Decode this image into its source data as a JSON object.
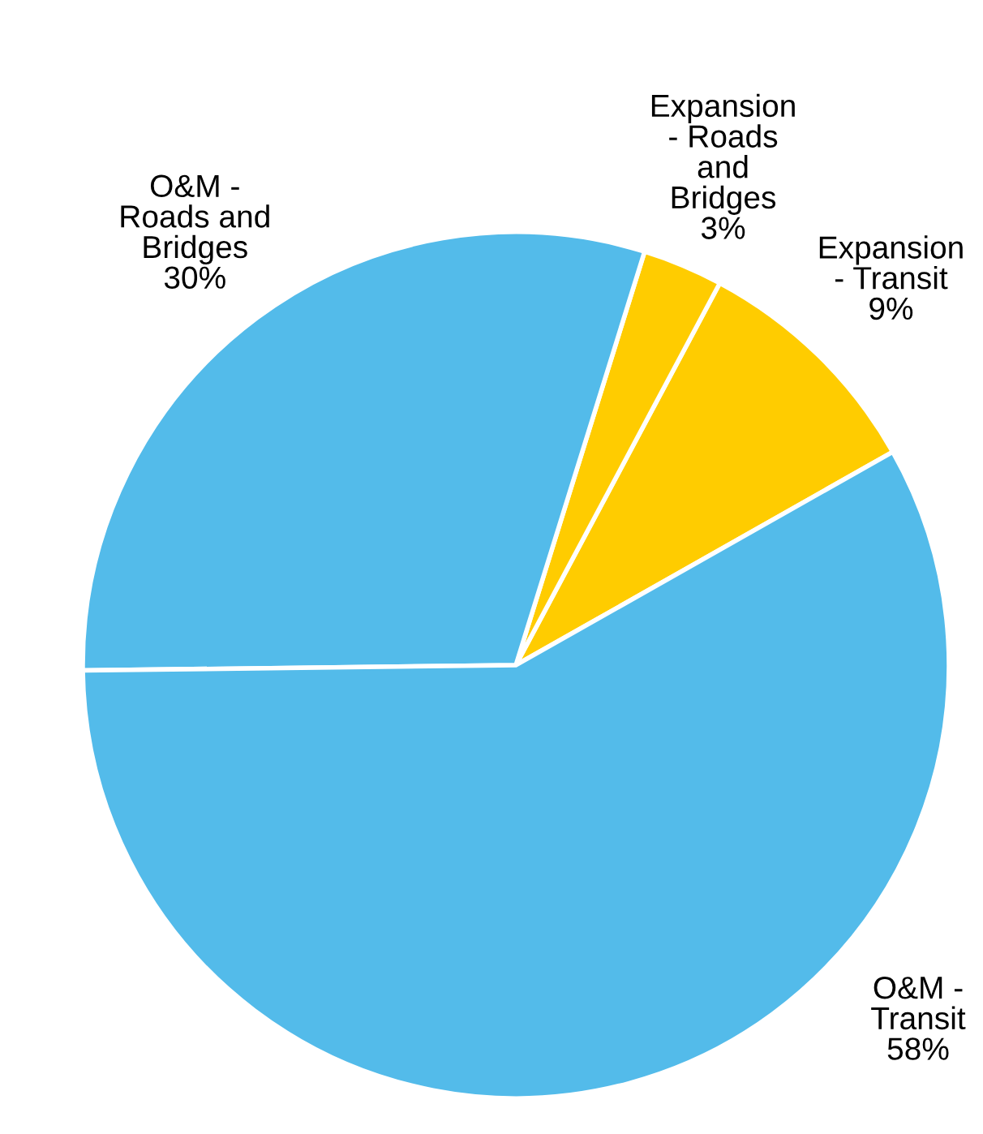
{
  "chart_data": {
    "type": "pie",
    "categories": [
      "Expansion\n- Transit",
      "Expansion\n- Roads\nand\nBridges",
      "O&M -\nRoads and\nBridges",
      "O&M -\nTransit"
    ],
    "values": [
      9,
      3,
      30,
      58
    ],
    "value_labels": [
      "9%",
      "3%",
      "30%",
      "58%"
    ],
    "colors": [
      "#ffcc00",
      "#ffcc00",
      "#53bbea",
      "#53bbea"
    ]
  }
}
